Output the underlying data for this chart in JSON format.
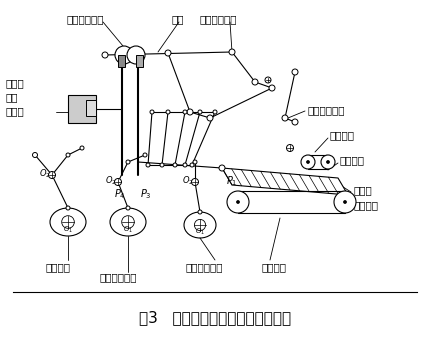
{
  "title": "图3   供袋部件的机构分析简化模型",
  "title_fontsize": 11,
  "bg_color": "#ffffff",
  "line_color": "#000000",
  "labels": {
    "jiajuangtisheng": "夹袋提升机构",
    "chilun": "齿轮",
    "erci_shangdai": "二次上袋机构",
    "jiachiqijianshou": "夹持器",
    "qianshou": "钳手",
    "gongxupan": "工序盘",
    "yici_shangdai": "一次上袋机构",
    "zhenkong_xipan": "真空吸盘",
    "saodai_pidai": "扫袋皮带",
    "yuzhi_dai": "预制袋",
    "gong_dai_pingtai": "供袋平台",
    "song_dai_pidai": "送袋皮带",
    "jiadadaigualun": "夹袋凸轮",
    "erci_shangdai_tulun": "二次上袋凸轮",
    "yici_shangdai_tulun": "一次上袋凸轮"
  }
}
